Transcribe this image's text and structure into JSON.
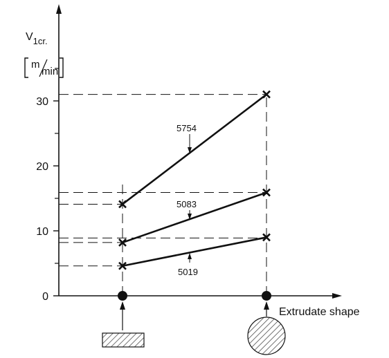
{
  "chart_data": {
    "type": "line",
    "ylabel": {
      "symbol": "V",
      "subscript": "1cr.",
      "unit_numerator": "m",
      "unit_denominator": "min"
    },
    "xlabel": "Extrudate shape",
    "ylim": [
      0,
      36
    ],
    "yticks": [
      0,
      10,
      20,
      30
    ],
    "categories": [
      "rectangular",
      "circular"
    ],
    "category_icons": [
      "hatched-rectangle",
      "hatched-circle"
    ],
    "series": [
      {
        "name": "5754",
        "values": [
          14.1,
          31.0
        ]
      },
      {
        "name": "5083",
        "values": [
          8.2,
          15.9
        ]
      },
      {
        "name": "5019",
        "values": [
          4.6,
          9.0
        ]
      }
    ],
    "dashed_reference_lines": [
      14.1,
      15.9,
      8.2,
      8.9,
      4.6,
      31.0
    ],
    "colors": {
      "ink": "#111111",
      "hatch": "#333333"
    }
  }
}
